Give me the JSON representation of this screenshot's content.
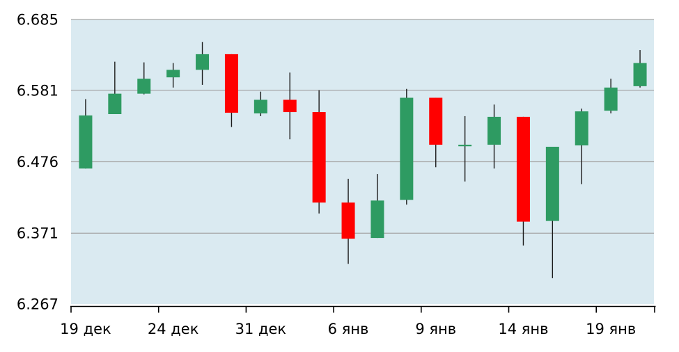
{
  "chart_data": {
    "type": "candlestick",
    "title": "",
    "xlabel": "",
    "ylabel": "",
    "ylim": [
      6.267,
      6.685
    ],
    "grid": true,
    "legend": "none",
    "y_ticks": [
      {
        "value": 6.685,
        "label": "6.685"
      },
      {
        "value": 6.581,
        "label": "6.581"
      },
      {
        "value": 6.476,
        "label": "6.476"
      },
      {
        "value": 6.371,
        "label": "6.371"
      },
      {
        "value": 6.267,
        "label": "6.267"
      }
    ],
    "x_ticks": [
      {
        "label": "19 дек",
        "candle_index": 0
      },
      {
        "label": "24 дек",
        "candle_index": 3
      },
      {
        "label": "31 дек",
        "candle_index": 6
      },
      {
        "label": "6 янв",
        "candle_index": 9
      },
      {
        "label": "9 янв",
        "candle_index": 12
      },
      {
        "label": "14 янв",
        "candle_index": 15
      },
      {
        "label": "19 янв",
        "candle_index": 18
      }
    ],
    "tick_boundaries": [
      0,
      3,
      6,
      9,
      12,
      15,
      18,
      20
    ],
    "candles_per_tick": 3,
    "colors": {
      "up": "#2E9B62",
      "down": "#FF0000",
      "wick": "#1A1A1A",
      "plot_bg": "#DAEAF1",
      "grid": "#A6A6A6",
      "axis": "#000000",
      "label": "#000000",
      "page_bg": "#FFFFFF"
    },
    "candles": [
      {
        "open": 6.466,
        "high": 6.568,
        "low": 6.466,
        "close": 6.544,
        "direction": "up"
      },
      {
        "open": 6.546,
        "high": 6.623,
        "low": 6.546,
        "close": 6.576,
        "direction": "up"
      },
      {
        "open": 6.576,
        "high": 6.622,
        "low": 6.575,
        "close": 6.598,
        "direction": "up"
      },
      {
        "open": 6.6,
        "high": 6.621,
        "low": 6.585,
        "close": 6.611,
        "direction": "up"
      },
      {
        "open": 6.611,
        "high": 6.652,
        "low": 6.589,
        "close": 6.634,
        "direction": "up"
      },
      {
        "open": 6.634,
        "high": 6.634,
        "low": 6.527,
        "close": 6.548,
        "direction": "down"
      },
      {
        "open": 6.547,
        "high": 6.579,
        "low": 6.543,
        "close": 6.567,
        "direction": "up"
      },
      {
        "open": 6.567,
        "high": 6.607,
        "low": 6.509,
        "close": 6.549,
        "direction": "down"
      },
      {
        "open": 6.549,
        "high": 6.581,
        "low": 6.4,
        "close": 6.416,
        "direction": "down"
      },
      {
        "open": 6.416,
        "high": 6.451,
        "low": 6.326,
        "close": 6.363,
        "direction": "down"
      },
      {
        "open": 6.364,
        "high": 6.458,
        "low": 6.364,
        "close": 6.419,
        "direction": "up"
      },
      {
        "open": 6.42,
        "high": 6.583,
        "low": 6.413,
        "close": 6.57,
        "direction": "up"
      },
      {
        "open": 6.57,
        "high": 6.57,
        "low": 6.468,
        "close": 6.501,
        "direction": "down"
      },
      {
        "open": 6.499,
        "high": 6.543,
        "low": 6.447,
        "close": 6.501,
        "direction": "up"
      },
      {
        "open": 6.501,
        "high": 6.56,
        "low": 6.466,
        "close": 6.542,
        "direction": "up"
      },
      {
        "open": 6.542,
        "high": 6.542,
        "low": 6.353,
        "close": 6.388,
        "direction": "down"
      },
      {
        "open": 6.389,
        "high": 6.498,
        "low": 6.305,
        "close": 6.498,
        "direction": "up"
      },
      {
        "open": 6.5,
        "high": 6.554,
        "low": 6.443,
        "close": 6.55,
        "direction": "up"
      },
      {
        "open": 6.551,
        "high": 6.598,
        "low": 6.547,
        "close": 6.585,
        "direction": "up"
      },
      {
        "open": 6.587,
        "high": 6.64,
        "low": 6.585,
        "close": 6.621,
        "direction": "up"
      }
    ]
  }
}
